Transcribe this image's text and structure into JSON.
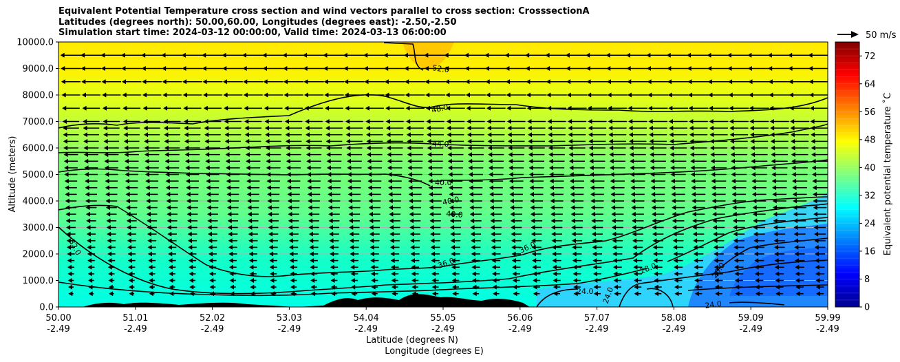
{
  "title_lines": [
    "Equivalent Potential Temperature cross section and wind vectors parallel to cross section: CrosssectionA",
    "Latitudes (degrees north): 50.00,60.00, Longitudes (degrees east): -2.50,-2.50",
    "Simulation start time: 2024-03-12 00:00:00, Valid time: 2024-03-13 06:00:00"
  ],
  "chart_data": {
    "type": "heatmap",
    "ylabel": "Altitude (meters)",
    "xlabel": "Latitude (degrees N)",
    "xlabel2": "Longitude (degrees E)",
    "ylim": [
      0,
      10000
    ],
    "yticks": [
      "0.0",
      "1000.0",
      "2000.0",
      "3000.0",
      "4000.0",
      "5000.0",
      "6000.0",
      "7000.0",
      "8000.0",
      "9000.0",
      "10000.0"
    ],
    "xticks": [
      {
        "lat": "50.00",
        "lon": "-2.49"
      },
      {
        "lat": "51.01",
        "lon": "-2.49"
      },
      {
        "lat": "52.02",
        "lon": "-2.49"
      },
      {
        "lat": "53.03",
        "lon": "-2.49"
      },
      {
        "lat": "54.04",
        "lon": "-2.49"
      },
      {
        "lat": "55.05",
        "lon": "-2.49"
      },
      {
        "lat": "56.06",
        "lon": "-2.49"
      },
      {
        "lat": "57.07",
        "lon": "-2.49"
      },
      {
        "lat": "58.08",
        "lon": "-2.49"
      },
      {
        "lat": "59.09",
        "lon": "-2.49"
      },
      {
        "lat": "59.99",
        "lon": "-2.49"
      }
    ],
    "grid": "horizontal",
    "colorbar": {
      "label": "Equivalent potential temperature ˚C",
      "range": [
        0,
        76
      ],
      "ticks": [
        "0",
        "8",
        "16",
        "24",
        "32",
        "40",
        "48",
        "56",
        "64",
        "72"
      ],
      "colormap": "jet"
    },
    "wind_key": "50 m/s",
    "wind_direction": "toward lower latitude (leftward)",
    "contour_labels": [
      "52.0",
      "48.0",
      "44.0",
      "40.0",
      "40.0",
      "40.0",
      "36.0",
      "36.0",
      "32.0",
      "28.0",
      "24.0",
      "24.0",
      "24.0",
      "20.0"
    ]
  }
}
